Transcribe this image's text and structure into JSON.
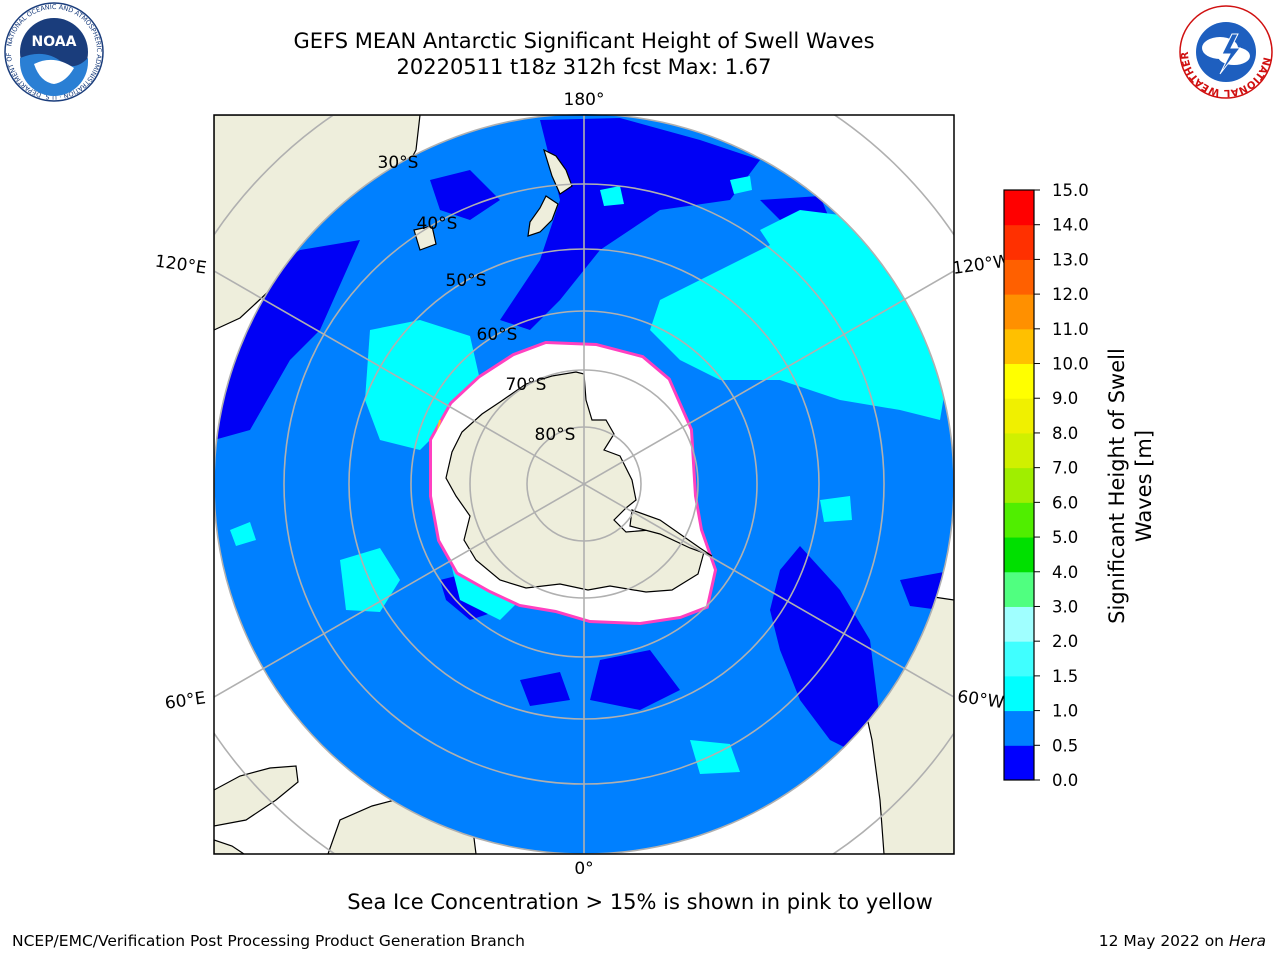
{
  "header": {
    "title_line1": "GEFS MEAN Antarctic Significant Height of Swell Waves",
    "title_line2": "20220511 t18z 312h fcst   Max: 1.67"
  },
  "logos": {
    "noaa_text": "NOAA",
    "noaa_ring_text": "NATIONAL OCEANIC AND ATMOSPHERIC ADMINISTRATION · U.S. DEPARTMENT OF COMMERCE",
    "nws_ring_text": "NATIONAL WEATHER SERVICE"
  },
  "map": {
    "longitude_labels": {
      "top": "180°",
      "bottom": "0°",
      "upper_left": "120°E",
      "upper_right": "120°W",
      "lower_left": "60°E",
      "lower_right": "60°W"
    },
    "latitude_labels": [
      "30°S",
      "40°S",
      "50°S",
      "60°S",
      "70°S",
      "80°S"
    ],
    "colors": {
      "ocean": "#0080ff",
      "land": "#eeeedc",
      "ice": "#ffffff",
      "low": "#0000f5",
      "cyan": "#00ffff",
      "grid": "#b0b0b0"
    }
  },
  "colorbar": {
    "label_line1": "Significant Height of Swell",
    "label_line2": "Waves [m]",
    "ticks": [
      "0.0",
      "0.5",
      "1.0",
      "1.5",
      "2.0",
      "3.0",
      "4.0",
      "5.0",
      "6.0",
      "7.0",
      "8.0",
      "9.0",
      "10.0",
      "11.0",
      "12.0",
      "13.0",
      "14.0",
      "15.0"
    ],
    "colors": [
      "#0000ff",
      "#0080ff",
      "#00ffff",
      "#40ffff",
      "#a0ffff",
      "#50ff80",
      "#00e000",
      "#50ee00",
      "#a0ee00",
      "#d0f000",
      "#f0f000",
      "#ffff00",
      "#ffc000",
      "#ff9000",
      "#ff6000",
      "#ff3000",
      "#ff0000"
    ]
  },
  "footer": {
    "note": "Sea Ice Concentration > 15% is shown in pink to yellow",
    "left": "NCEP/EMC/Verification Post Processing Product Generation Branch",
    "right_prefix": "12 May 2022 on ",
    "right_host": "Hera"
  }
}
